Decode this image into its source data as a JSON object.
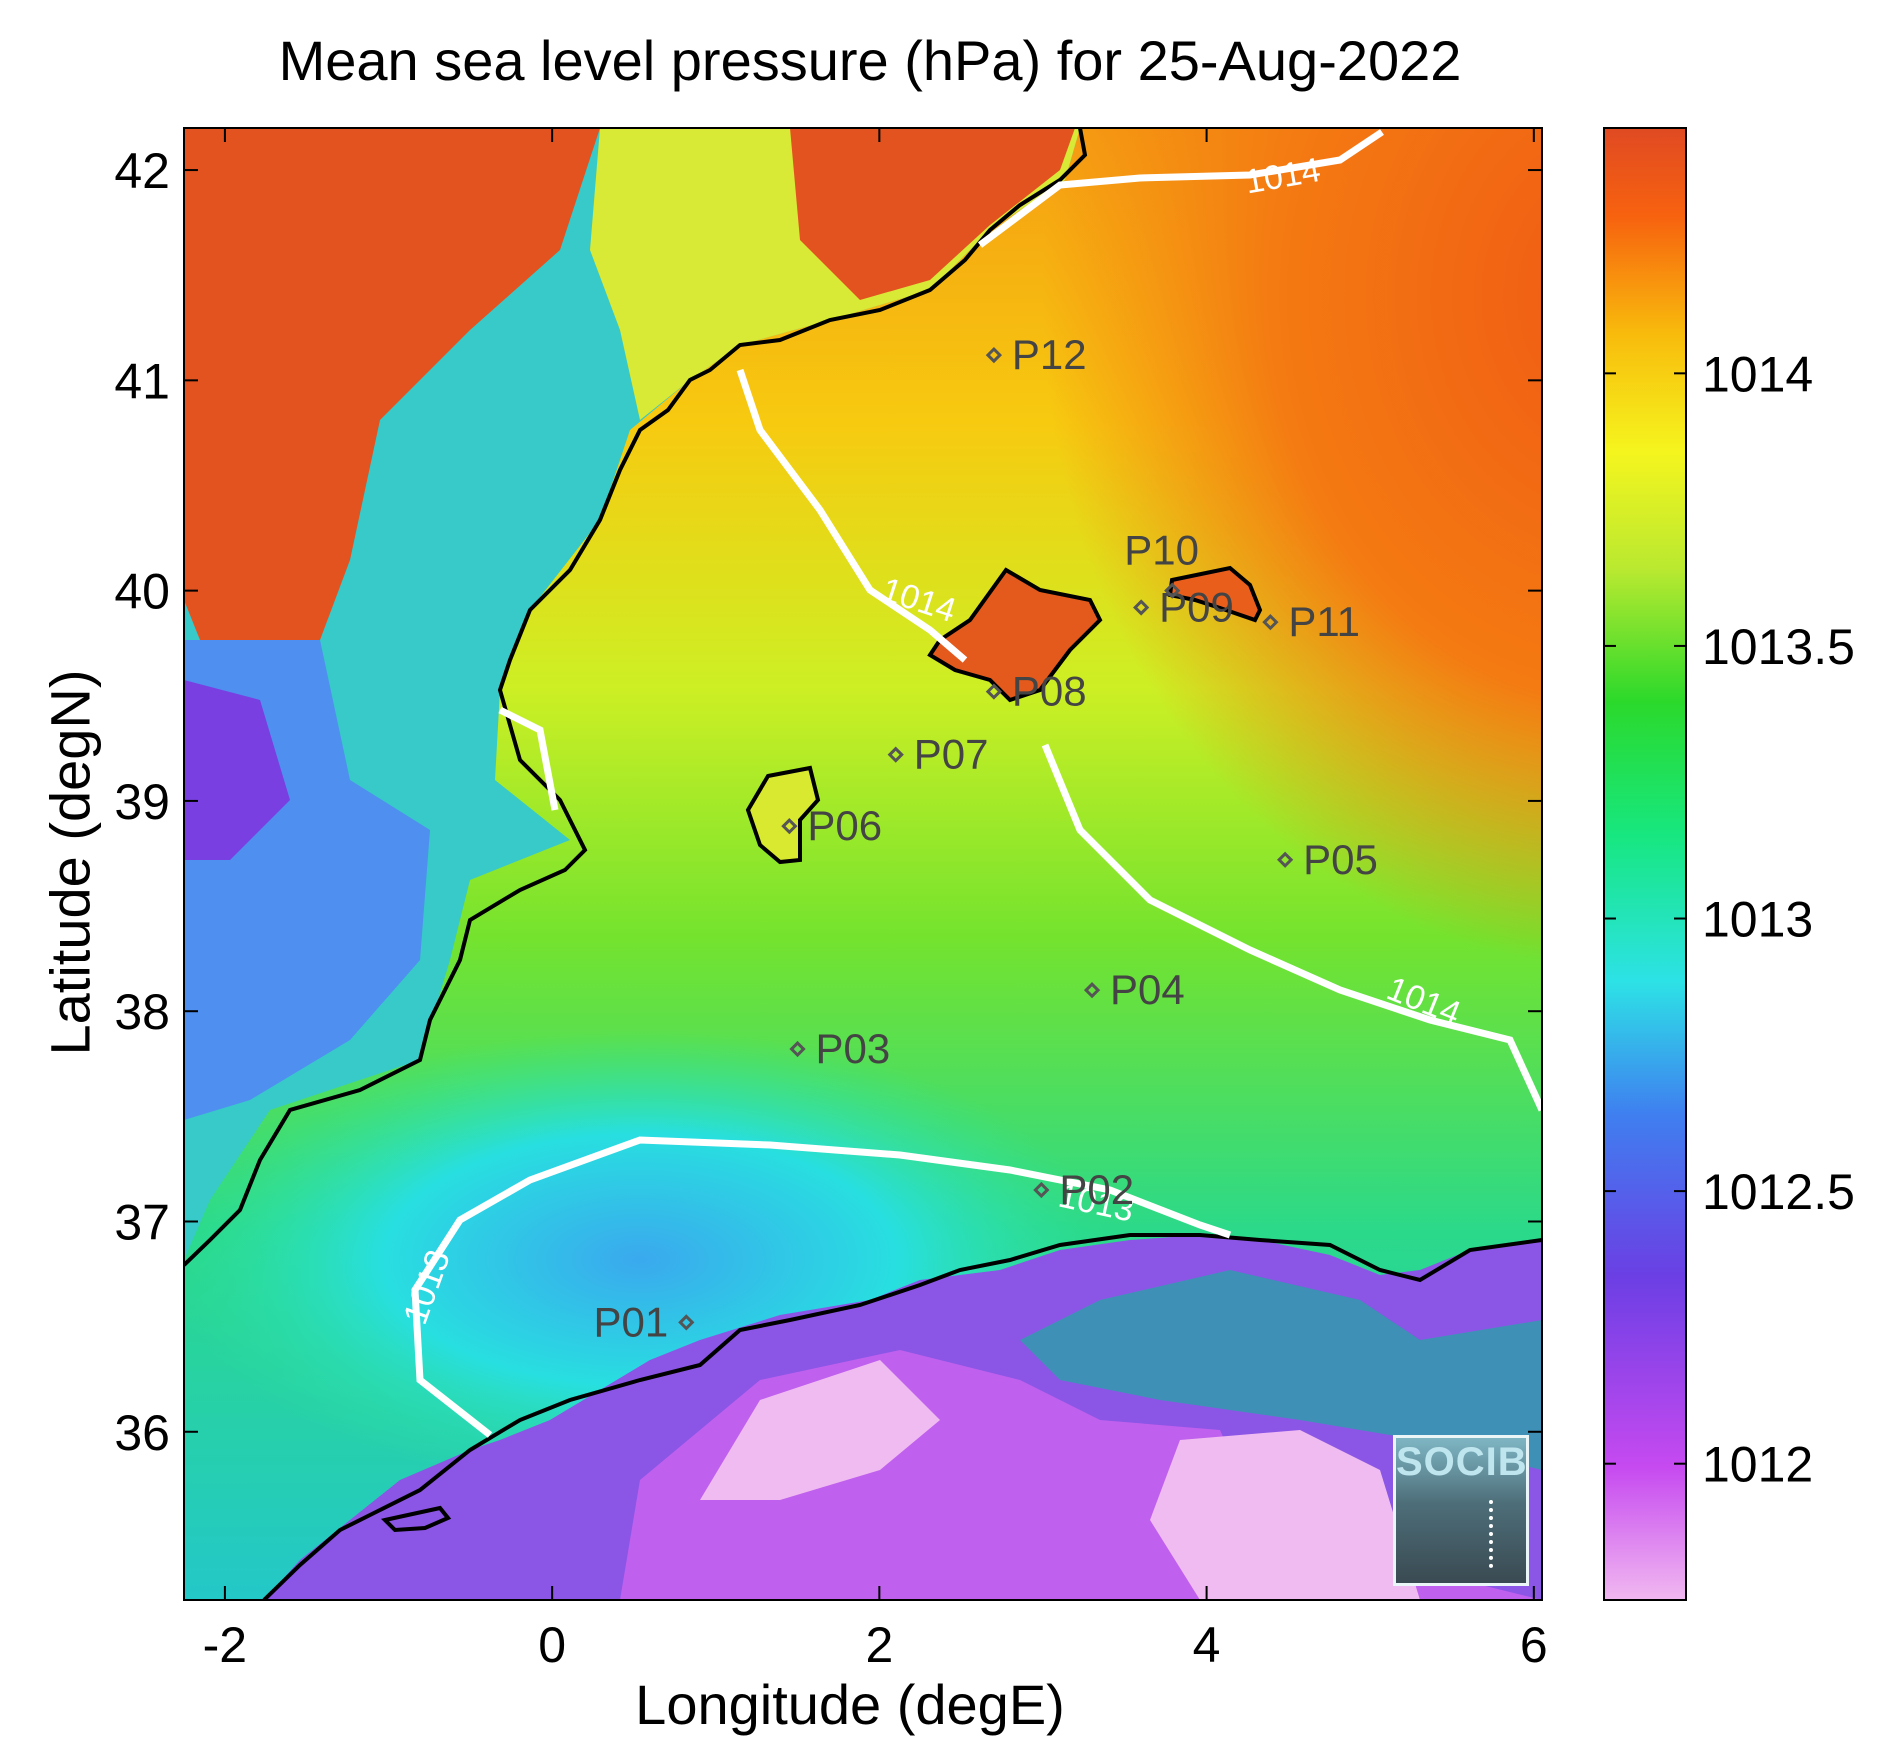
{
  "title": "Mean sea level pressure (hPa) for 25-Aug-2022",
  "xlabel": "Longitude (degE)",
  "ylabel": "Latitude (degN)",
  "logo": {
    "text": "SOCIB"
  },
  "map": {
    "x_ticks": [
      "-2",
      "0",
      "2",
      "4",
      "6"
    ],
    "y_ticks": [
      "36",
      "37",
      "38",
      "39",
      "40",
      "41",
      "42"
    ],
    "x_range": [
      -2.25,
      6.05
    ],
    "y_range": [
      35.2,
      42.2
    ],
    "contours": [
      {
        "label": "1014",
        "color": "#ffffff"
      },
      {
        "label": "1014",
        "color": "#ffffff"
      },
      {
        "label": "1014",
        "color": "#ffffff"
      },
      {
        "label": "1013",
        "color": "#ffffff"
      },
      {
        "label": "1013",
        "color": "#ffffff"
      }
    ],
    "stations": [
      {
        "name": "P01",
        "lon": 0.82,
        "lat": 36.52
      },
      {
        "name": "P02",
        "lon": 2.99,
        "lat": 37.15
      },
      {
        "name": "P03",
        "lon": 1.5,
        "lat": 37.82
      },
      {
        "name": "P04",
        "lon": 3.3,
        "lat": 38.1
      },
      {
        "name": "P05",
        "lon": 4.48,
        "lat": 38.72
      },
      {
        "name": "P06",
        "lon": 1.45,
        "lat": 38.88
      },
      {
        "name": "P07",
        "lon": 2.1,
        "lat": 39.22
      },
      {
        "name": "P08",
        "lon": 2.7,
        "lat": 39.52
      },
      {
        "name": "P09",
        "lon": 3.6,
        "lat": 39.92
      },
      {
        "name": "P10",
        "lon": 3.79,
        "lat": 40.0
      },
      {
        "name": "P11",
        "lon": 4.39,
        "lat": 39.85
      },
      {
        "name": "P12",
        "lon": 2.7,
        "lat": 41.12
      }
    ]
  },
  "colorbar": {
    "ticks": [
      "1012",
      "1012.5",
      "1013",
      "1013.5",
      "1014"
    ],
    "tick_values": [
      1012,
      1012.5,
      1013,
      1013.5,
      1014
    ],
    "range": [
      1011.75,
      1014.45
    ],
    "colors": [
      "#f1b8f0",
      "#c64af0",
      "#6b3fe4",
      "#3f7ff0",
      "#2de2e6",
      "#17e77f",
      "#2bd92b",
      "#b9e930",
      "#f5f51e",
      "#f8bb0c",
      "#f7620f",
      "#e04a23"
    ]
  }
}
